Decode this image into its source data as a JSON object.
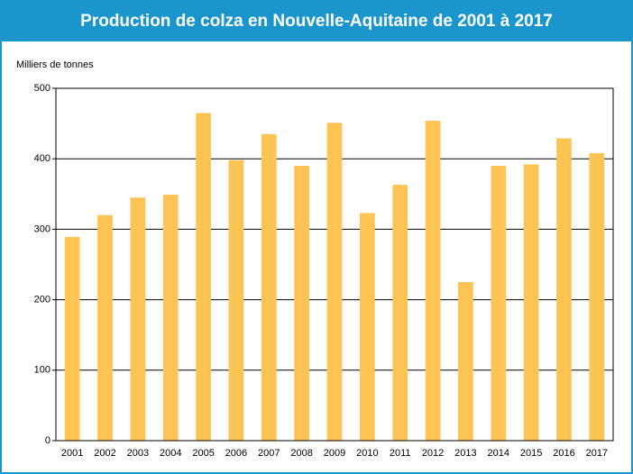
{
  "chart_data": {
    "type": "bar",
    "title": "Production de colza en Nouvelle-Aquitaine de 2001 à 2017",
    "y_label": "Milliers de tonnes",
    "categories": [
      "2001",
      "2002",
      "2003",
      "2004",
      "2005",
      "2006",
      "2007",
      "2008",
      "2009",
      "2010",
      "2011",
      "2012",
      "2013",
      "2014",
      "2015",
      "2016",
      "2017"
    ],
    "values": [
      289,
      320,
      345,
      349,
      465,
      398,
      435,
      390,
      451,
      323,
      363,
      454,
      225,
      390,
      392,
      429,
      408
    ],
    "color": "#fdc453",
    "ylim": [
      0,
      500
    ],
    "yticks": [
      0,
      100,
      200,
      300,
      400,
      500
    ],
    "grid": true
  }
}
